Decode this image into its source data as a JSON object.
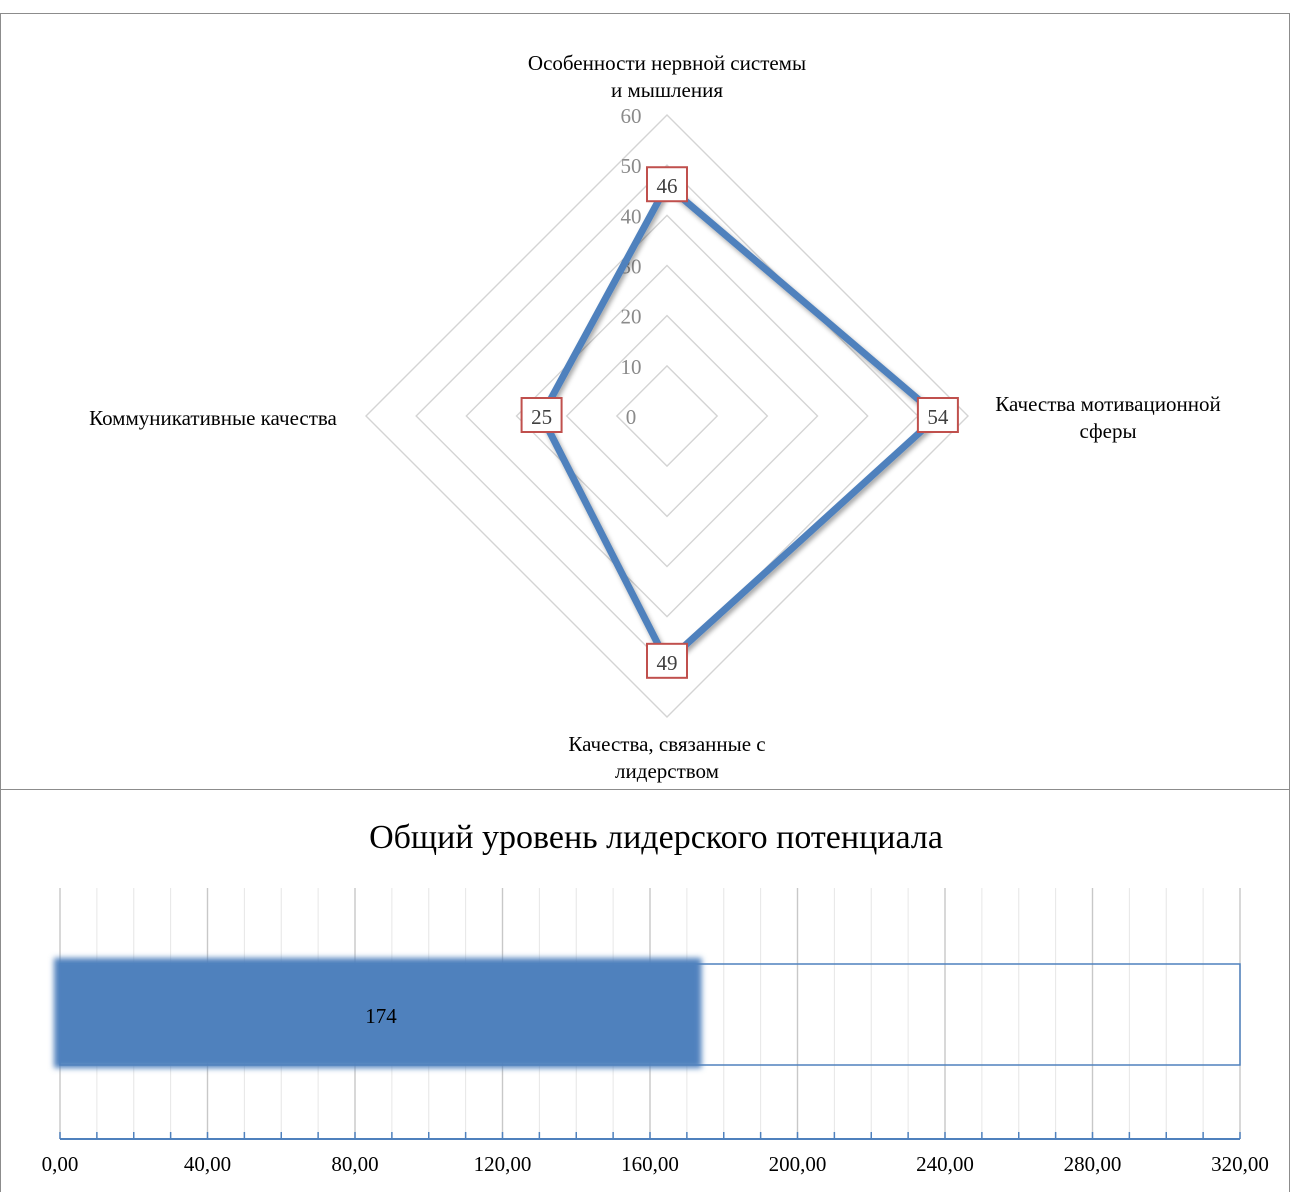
{
  "chart_data": [
    {
      "type": "radar",
      "categories": [
        "Особенности нервной системы и мышления",
        "Качества мотивационной сферы",
        "Качества, связанные с лидерством",
        "Коммуникативные качества"
      ],
      "category_lines": [
        [
          "Особенности нервной системы",
          "и мышления"
        ],
        [
          "Качества мотивационной",
          "сферы"
        ],
        [
          "Качества, связанные с",
          "лидерством"
        ],
        [
          "Коммуникативные качества"
        ]
      ],
      "values": [
        46,
        54,
        49,
        25
      ],
      "data_labels": [
        "46",
        "54",
        "49",
        "25"
      ],
      "rlim": [
        0,
        60
      ],
      "ticks": [
        "0",
        "10",
        "20",
        "30",
        "40",
        "50",
        "60"
      ],
      "grid": true,
      "series_color": "#4f81bd",
      "label_border_color": "#c0504d"
    },
    {
      "type": "bar",
      "orientation": "horizontal",
      "title": "Общий уровень лидерского потенциала",
      "value": 174,
      "value_label": "174",
      "max": 320,
      "xlim": [
        0,
        320
      ],
      "xticks": [
        "0,00",
        "40,00",
        "80,00",
        "120,00",
        "160,00",
        "200,00",
        "240,00",
        "280,00",
        "320,00"
      ],
      "grid": true,
      "bar_color": "#4f81bd"
    }
  ]
}
